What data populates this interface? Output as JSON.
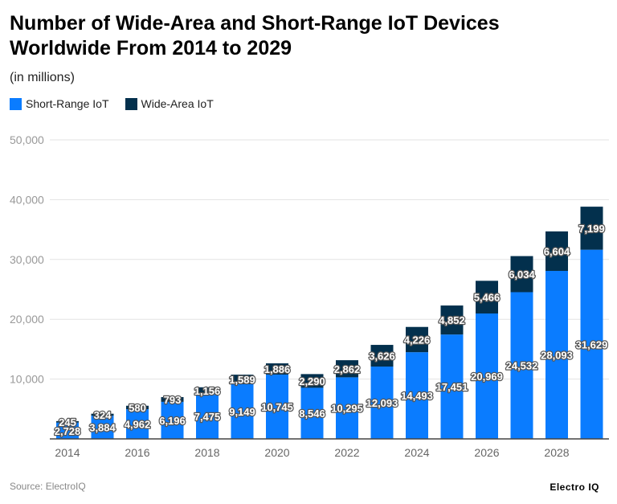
{
  "title": "Number of Wide-Area and Short-Range IoT Devices Worldwide From 2014 to 2029",
  "subtitle": "(in millions)",
  "source": "Source: ElectroIQ",
  "logo": "Electro IQ",
  "chart_data": {
    "type": "bar",
    "stacked": true,
    "categories": [
      "2014",
      "2015",
      "2016",
      "2017",
      "2018",
      "2019",
      "2020",
      "2021",
      "2022",
      "2023",
      "2024",
      "2025",
      "2026",
      "2027",
      "2028",
      "2029"
    ],
    "x_tick_labels": [
      "2014",
      "2016",
      "2018",
      "2020",
      "2022",
      "2024",
      "2026",
      "2028"
    ],
    "series": [
      {
        "name": "Short-Range IoT",
        "color": "#0a7cff",
        "values": [
          2728,
          3884,
          4962,
          6196,
          7475,
          9149,
          10745,
          8546,
          10295,
          12093,
          14493,
          17451,
          20969,
          24532,
          28093,
          31629
        ]
      },
      {
        "name": "Wide-Area IoT",
        "color": "#03304d",
        "values": [
          245,
          324,
          580,
          793,
          1156,
          1589,
          1886,
          2290,
          2862,
          3626,
          4226,
          4852,
          5466,
          6034,
          6604,
          7199
        ]
      }
    ],
    "ylim": [
      0,
      50000
    ],
    "y_ticks": [
      0,
      10000,
      20000,
      30000,
      40000,
      50000
    ],
    "y_tick_labels": [
      "",
      "10,000",
      "20,000",
      "30,000",
      "40,000",
      "50,000"
    ],
    "grid": true,
    "legend_position": "top-left"
  }
}
